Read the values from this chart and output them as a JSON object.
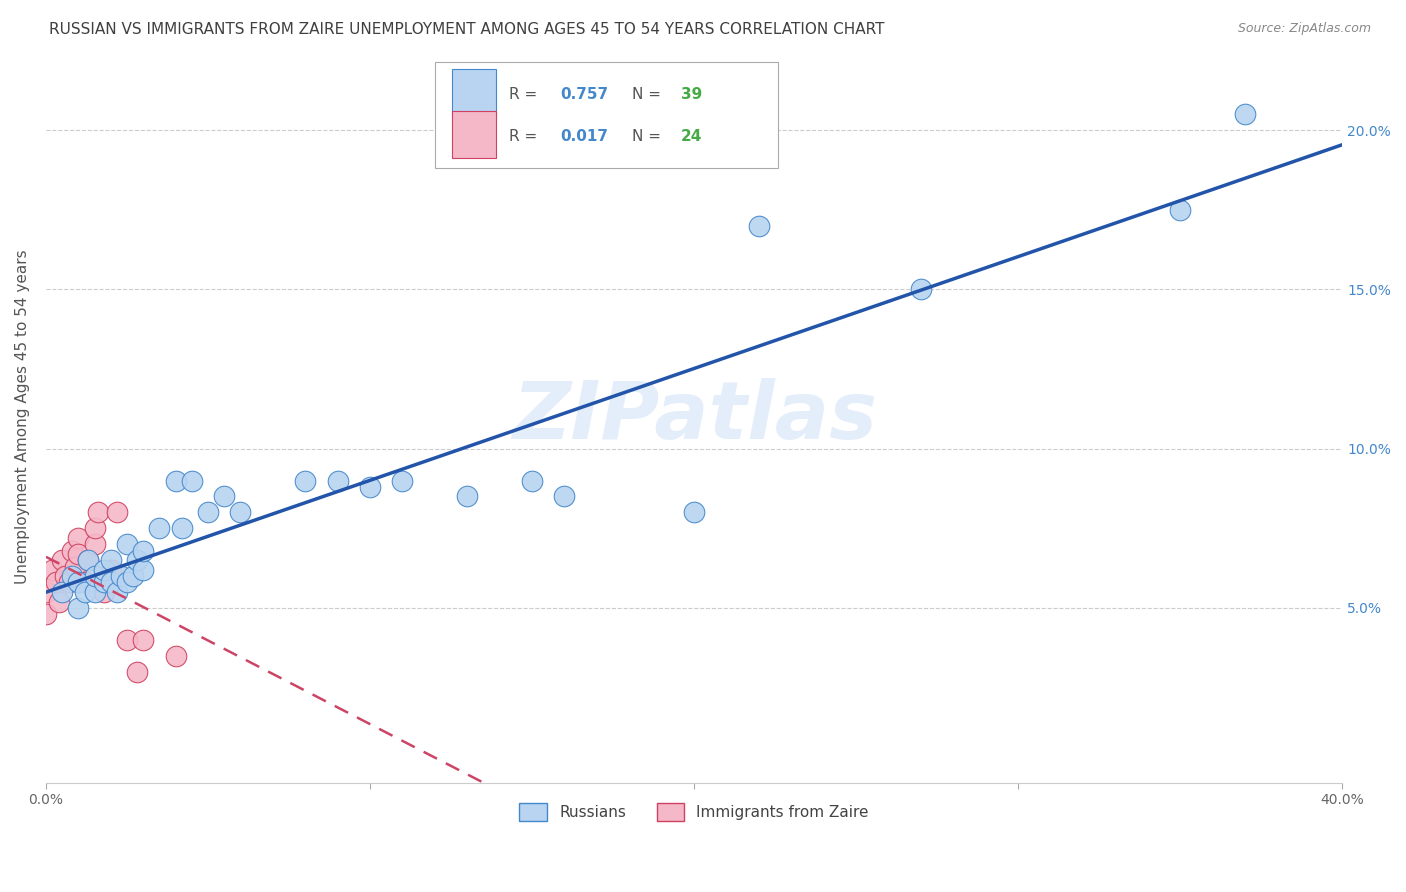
{
  "title": "RUSSIAN VS IMMIGRANTS FROM ZAIRE UNEMPLOYMENT AMONG AGES 45 TO 54 YEARS CORRELATION CHART",
  "source": "Source: ZipAtlas.com",
  "ylabel": "Unemployment Among Ages 45 to 54 years",
  "legend_label_russian": "Russians",
  "legend_label_zaire": "Immigrants from Zaire",
  "R_russian": "0.757",
  "N_russian": "39",
  "R_zaire": "0.017",
  "N_zaire": "24",
  "xlim": [
    0.0,
    0.4
  ],
  "ylim": [
    -0.005,
    0.225
  ],
  "ytick_positions": [
    0.05,
    0.1,
    0.15,
    0.2
  ],
  "ytick_labels": [
    "5.0%",
    "10.0%",
    "15.0%",
    "20.0%"
  ],
  "xtick_positions": [
    0.0,
    0.1,
    0.2,
    0.3,
    0.4
  ],
  "xtick_labels": [
    "0.0%",
    "",
    "",
    "",
    "40.0%"
  ],
  "watermark_text": "ZIPatlas",
  "bg_color": "#ffffff",
  "russian_fill": "#b8d4f0",
  "russian_edge": "#4488cc",
  "zaire_fill": "#f4b8c8",
  "zaire_edge": "#d04060",
  "russian_line_color": "#2255aa",
  "zaire_line_color": "#cc4466",
  "grid_color": "#cccccc",
  "title_color": "#404040",
  "right_axis_color": "#4488cc",
  "source_color": "#888888",
  "russian_scatter_x": [
    0.005,
    0.008,
    0.01,
    0.01,
    0.012,
    0.013,
    0.015,
    0.015,
    0.018,
    0.018,
    0.02,
    0.02,
    0.022,
    0.023,
    0.025,
    0.025,
    0.027,
    0.028,
    0.03,
    0.03,
    0.035,
    0.04,
    0.042,
    0.045,
    0.05,
    0.055,
    0.06,
    0.08,
    0.09,
    0.1,
    0.11,
    0.13,
    0.15,
    0.16,
    0.2,
    0.22,
    0.27,
    0.35,
    0.37
  ],
  "russian_scatter_y": [
    0.055,
    0.06,
    0.05,
    0.058,
    0.055,
    0.065,
    0.055,
    0.06,
    0.058,
    0.062,
    0.058,
    0.065,
    0.055,
    0.06,
    0.058,
    0.07,
    0.06,
    0.065,
    0.062,
    0.068,
    0.075,
    0.09,
    0.075,
    0.09,
    0.08,
    0.085,
    0.08,
    0.09,
    0.09,
    0.088,
    0.09,
    0.085,
    0.09,
    0.085,
    0.08,
    0.17,
    0.15,
    0.175,
    0.205
  ],
  "zaire_scatter_x": [
    0.0,
    0.0,
    0.002,
    0.003,
    0.004,
    0.005,
    0.006,
    0.007,
    0.008,
    0.009,
    0.01,
    0.01,
    0.012,
    0.013,
    0.015,
    0.015,
    0.016,
    0.018,
    0.02,
    0.022,
    0.025,
    0.028,
    0.03,
    0.04
  ],
  "zaire_scatter_y": [
    0.055,
    0.048,
    0.062,
    0.058,
    0.052,
    0.065,
    0.06,
    0.058,
    0.068,
    0.063,
    0.072,
    0.067,
    0.058,
    0.065,
    0.07,
    0.075,
    0.08,
    0.055,
    0.062,
    0.08,
    0.04,
    0.03,
    0.04,
    0.035
  ]
}
